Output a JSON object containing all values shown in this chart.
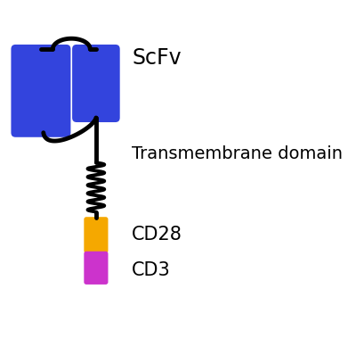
{
  "background_color": "#ffffff",
  "scfv_color": "#3344dd",
  "tm_color": "#000000",
  "cd28_color": "#f5a800",
  "cd3_color": "#cc33cc",
  "labels": {
    "scfv": "ScFv",
    "tm": "Transmembrane domain",
    "cd28": "CD28",
    "cd3": "CD3"
  },
  "label_fontsize": 14,
  "fig_width": 4.0,
  "fig_height": 3.98
}
